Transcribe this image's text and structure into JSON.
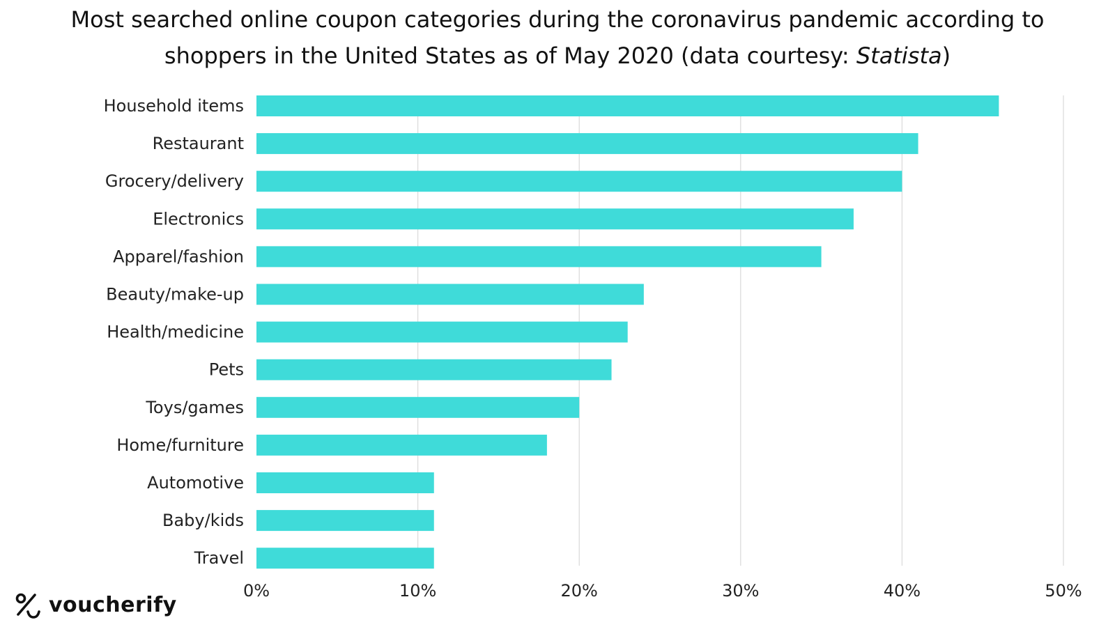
{
  "chart_data": {
    "type": "bar",
    "orientation": "horizontal",
    "title_main": "Most searched online coupon categories during the coronavirus pandemic according to shoppers in the United States as of May 2020 (data courtesy: ",
    "title_source": "Statista",
    "title_end": ")",
    "xlabel": "",
    "ylabel": "",
    "categories": [
      "Household items",
      "Restaurant",
      "Grocery/delivery",
      "Electronics",
      "Apparel/fashion",
      "Beauty/make-up",
      "Health/medicine",
      "Pets",
      "Toys/games",
      "Home/furniture",
      "Automotive",
      "Baby/kids",
      "Travel"
    ],
    "values": [
      46,
      41,
      40,
      37,
      35,
      24,
      23,
      22,
      20,
      18,
      11,
      11,
      11
    ],
    "unit": "%",
    "xlim": [
      0,
      50
    ],
    "ticks": [
      0,
      10,
      20,
      30,
      40,
      50
    ],
    "tick_labels": [
      "0%",
      "10%",
      "20%",
      "30%",
      "40%",
      "50%"
    ],
    "grid": true,
    "bar_color": "#3fdbd9"
  },
  "brand": {
    "logo_icon": "percent-icon",
    "name": "voucherify"
  }
}
